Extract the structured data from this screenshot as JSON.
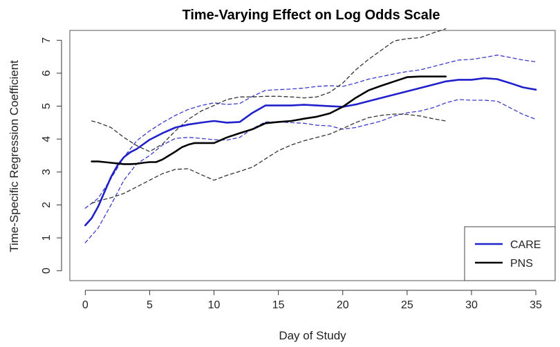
{
  "chart_data": {
    "type": "line",
    "title": "Time-Varying Effect on Log Odds Scale",
    "xlabel": "Day of Study",
    "ylabel": "Time-Specific Regression Coefficient",
    "xlim": [
      -1.2,
      36.5
    ],
    "ylim": [
      -0.3,
      7.3
    ],
    "x_ticks": [
      0,
      5,
      10,
      15,
      20,
      25,
      30,
      35
    ],
    "y_ticks": [
      0,
      1,
      2,
      3,
      4,
      5,
      6,
      7
    ],
    "legend": {
      "position": "bottom-right",
      "entries": [
        "CARE",
        "PNS"
      ]
    },
    "colors": {
      "CARE": "#1f1fcc",
      "PNS": "#000000",
      "CARE_ci": "#3a3acc",
      "PNS_ci": "#333333",
      "frame": "#555555"
    },
    "series": [
      {
        "name": "CARE",
        "style": "solid",
        "x": [
          0,
          0.5,
          1,
          1.5,
          2,
          2.5,
          3,
          3.5,
          4,
          5,
          6,
          7,
          8,
          9,
          10,
          11,
          12,
          13,
          14,
          15,
          16,
          17,
          18,
          19,
          20,
          21,
          22,
          23,
          24,
          25,
          26,
          27,
          28,
          29,
          30,
          31,
          32,
          33,
          34,
          35
        ],
        "values": [
          1.38,
          1.6,
          1.95,
          2.4,
          2.85,
          3.2,
          3.45,
          3.6,
          3.7,
          3.98,
          4.18,
          4.35,
          4.44,
          4.5,
          4.55,
          4.5,
          4.52,
          4.8,
          5.02,
          5.02,
          5.02,
          5.04,
          5.02,
          5.0,
          4.98,
          5.05,
          5.15,
          5.25,
          5.35,
          5.45,
          5.55,
          5.65,
          5.75,
          5.8,
          5.8,
          5.85,
          5.82,
          5.7,
          5.57,
          5.5
        ]
      },
      {
        "name": "CARE upper CI",
        "style": "dashed",
        "x": [
          0,
          1,
          2,
          3,
          4,
          5,
          6,
          7,
          8,
          9,
          10,
          11,
          12,
          13,
          14,
          15,
          16,
          17,
          18,
          19,
          20,
          21,
          22,
          23,
          24,
          25,
          26,
          27,
          28,
          29,
          30,
          31,
          32,
          33,
          34,
          35
        ],
        "values": [
          1.9,
          2.2,
          2.8,
          3.45,
          3.95,
          4.25,
          4.5,
          4.72,
          4.9,
          5.02,
          5.1,
          5.05,
          5.08,
          5.3,
          5.48,
          5.5,
          5.52,
          5.55,
          5.6,
          5.62,
          5.6,
          5.7,
          5.82,
          5.9,
          5.98,
          6.05,
          6.1,
          6.2,
          6.3,
          6.4,
          6.42,
          6.48,
          6.55,
          6.48,
          6.4,
          6.35
        ]
      },
      {
        "name": "CARE lower CI",
        "style": "dashed",
        "x": [
          0,
          1,
          2,
          3,
          4,
          5,
          6,
          7,
          8,
          9,
          10,
          11,
          12,
          13,
          14,
          15,
          16,
          17,
          18,
          19,
          20,
          21,
          22,
          23,
          24,
          25,
          26,
          27,
          28,
          29,
          30,
          31,
          32,
          33,
          34,
          35
        ],
        "values": [
          0.85,
          1.3,
          2.0,
          2.75,
          3.25,
          3.5,
          3.82,
          4.02,
          4.05,
          4.02,
          3.98,
          3.97,
          4.05,
          4.32,
          4.52,
          4.52,
          4.5,
          4.48,
          4.42,
          4.4,
          4.3,
          4.35,
          4.45,
          4.55,
          4.7,
          4.8,
          4.85,
          4.95,
          5.1,
          5.2,
          5.18,
          5.18,
          5.15,
          4.95,
          4.75,
          4.6
        ]
      },
      {
        "name": "PNS",
        "style": "solid",
        "x": [
          0.5,
          1,
          1.5,
          2,
          2.5,
          3,
          3.5,
          4,
          4.5,
          5,
          5.5,
          6,
          6.5,
          7,
          7.5,
          8,
          8.5,
          9,
          10,
          11,
          12,
          13,
          14,
          15,
          16,
          17,
          18,
          19,
          20,
          21,
          22,
          23,
          24,
          25,
          26,
          27,
          28
        ],
        "values": [
          3.32,
          3.32,
          3.3,
          3.28,
          3.26,
          3.24,
          3.24,
          3.25,
          3.28,
          3.3,
          3.3,
          3.38,
          3.5,
          3.62,
          3.75,
          3.83,
          3.88,
          3.88,
          3.88,
          4.05,
          4.18,
          4.3,
          4.48,
          4.52,
          4.55,
          4.62,
          4.68,
          4.78,
          4.98,
          5.25,
          5.48,
          5.62,
          5.75,
          5.88,
          5.9,
          5.9,
          5.9
        ]
      },
      {
        "name": "PNS upper CI",
        "style": "dashed",
        "x": [
          0.5,
          1,
          2,
          3,
          4,
          5,
          6,
          7,
          8,
          9,
          10,
          11,
          12,
          13,
          14,
          15,
          16,
          17,
          18,
          19,
          20,
          21,
          22,
          23,
          24,
          25,
          26,
          27,
          28
        ],
        "values": [
          4.55,
          4.5,
          4.35,
          4.05,
          3.8,
          3.62,
          3.85,
          4.25,
          4.6,
          4.85,
          5.02,
          5.2,
          5.28,
          5.28,
          5.3,
          5.3,
          5.28,
          5.25,
          5.28,
          5.42,
          5.7,
          6.1,
          6.42,
          6.7,
          6.98,
          7.05,
          7.08,
          7.22,
          7.35
        ]
      },
      {
        "name": "PNS lower CI",
        "style": "dashed",
        "x": [
          0.5,
          1,
          2,
          3,
          4,
          5,
          6,
          7,
          8,
          9,
          10,
          11,
          12,
          13,
          14,
          15,
          16,
          17,
          18,
          19,
          20,
          21,
          22,
          23,
          24,
          25,
          26,
          27,
          28
        ],
        "values": [
          2.05,
          2.12,
          2.22,
          2.35,
          2.55,
          2.75,
          2.95,
          3.08,
          3.1,
          2.92,
          2.75,
          2.9,
          3.02,
          3.15,
          3.4,
          3.65,
          3.82,
          3.95,
          4.05,
          4.15,
          4.32,
          4.5,
          4.65,
          4.72,
          4.76,
          4.75,
          4.7,
          4.62,
          4.55
        ]
      }
    ]
  }
}
